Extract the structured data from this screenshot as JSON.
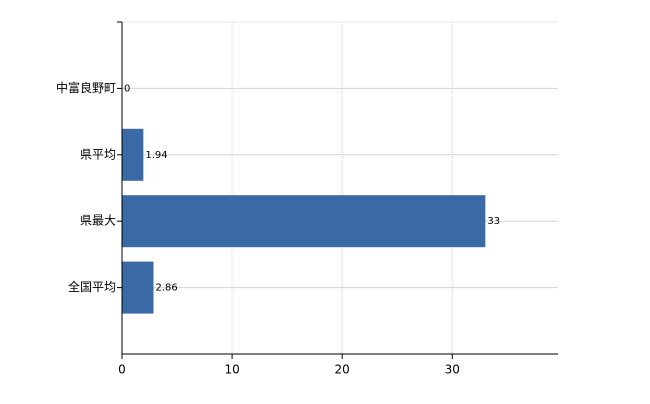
{
  "chart_data": {
    "type": "bar",
    "orientation": "horizontal",
    "categories": [
      "中富良野町",
      "県平均",
      "県最大",
      "全国平均"
    ],
    "values": [
      0,
      1.94,
      33,
      2.86
    ],
    "color": "#3a6aa6",
    "xlim": [
      0,
      39.6
    ],
    "xticks": [
      0,
      10,
      20,
      30
    ],
    "grid": true
  }
}
